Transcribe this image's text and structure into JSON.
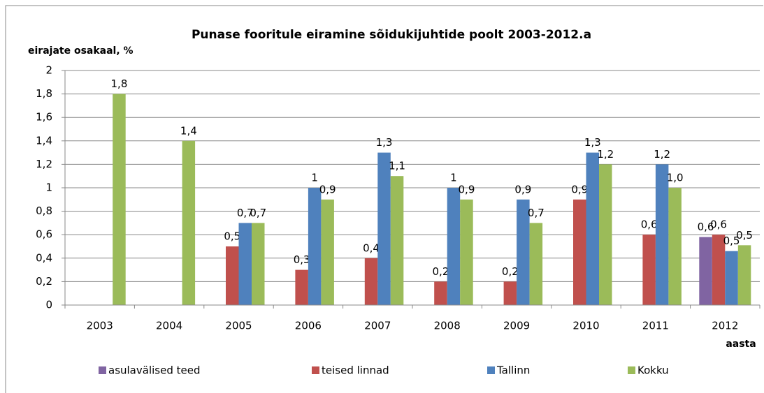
{
  "chart_data": {
    "type": "bar",
    "title": "Punase fooritule eiramine sõidukijuhtide  poolt 2003-2012.a",
    "y_label": "eirajate osakaal, %",
    "x_label": "aasta",
    "categories": [
      "2003",
      "2004",
      "2005",
      "2006",
      "2007",
      "2008",
      "2009",
      "2010",
      "2011",
      "2012"
    ],
    "series": [
      {
        "name": "asulavälised teed",
        "color": "#8064a2",
        "values": [
          null,
          null,
          null,
          null,
          null,
          null,
          null,
          null,
          null,
          0.58
        ],
        "value_labels": [
          null,
          null,
          null,
          null,
          null,
          null,
          null,
          null,
          null,
          "0,6"
        ]
      },
      {
        "name": "teised linnad",
        "color": "#c0504d",
        "values": [
          null,
          null,
          0.5,
          0.3,
          0.4,
          0.2,
          0.2,
          0.9,
          0.6,
          0.6
        ],
        "value_labels": [
          null,
          null,
          "0,5",
          "0,3",
          "0,4",
          "0,2",
          "0,2",
          "0,9",
          "0,6",
          "0,6"
        ]
      },
      {
        "name": "Tallinn",
        "color": "#4f81bd",
        "values": [
          null,
          null,
          0.7,
          1,
          1.3,
          1,
          0.9,
          1.3,
          1.2,
          0.46
        ],
        "value_labels": [
          null,
          null,
          "0,7",
          "1",
          "1,3",
          "1",
          "0,9",
          "1,3",
          "1,2",
          "0,5"
        ]
      },
      {
        "name": "Kokku",
        "color": "#9bbb59",
        "values": [
          1.8,
          1.4,
          0.7,
          0.9,
          1.1,
          0.9,
          0.7,
          1.2,
          1.0,
          0.51
        ],
        "value_labels": [
          "1,8",
          "1,4",
          "0,7",
          "0,9",
          "1,1",
          "0,9",
          "0,7",
          "1,2",
          "1,0",
          "0,5"
        ]
      }
    ],
    "ylim": [
      0,
      2
    ],
    "yticks": [
      0,
      {
        "value": 0.2,
        "label": "0,2"
      },
      {
        "value": 0.4,
        "label": "0,4"
      },
      {
        "value": 0.6,
        "label": "0,6"
      },
      {
        "value": 0.8,
        "label": "0,8"
      },
      1,
      {
        "value": 1.2,
        "label": "1,2"
      },
      {
        "value": 1.4,
        "label": "1,4"
      },
      {
        "value": 1.6,
        "label": "1,6"
      },
      {
        "value": 1.8,
        "label": "1,8"
      },
      2
    ],
    "grid": true,
    "legend": "bottom"
  }
}
